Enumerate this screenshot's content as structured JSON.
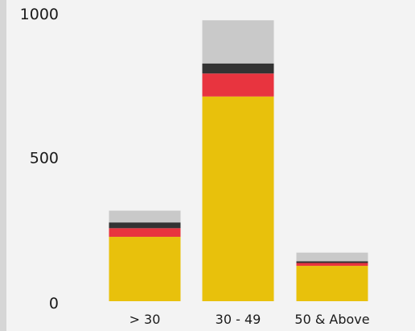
{
  "chart_data": {
    "type": "bar",
    "stacked": true,
    "categories": [
      "> 30",
      "30 - 49",
      "50 & Above"
    ],
    "series": [
      {
        "values": [
          224,
          712,
          123
        ],
        "color": "#E8C10C"
      },
      {
        "values": [
          30,
          80,
          10
        ],
        "color": "#E8343F"
      },
      {
        "values": [
          20,
          35,
          6
        ],
        "color": "#333333"
      },
      {
        "values": [
          41,
          150,
          30
        ],
        "color": "#C9C9C9"
      }
    ],
    "title": "",
    "xlabel": "",
    "ylabel": "",
    "ylim": [
      0,
      1000
    ],
    "yticks": [
      0,
      500,
      1000
    ],
    "ytick_labels": [
      "0",
      "500",
      "1000"
    ],
    "grid": false,
    "legend": "none"
  }
}
